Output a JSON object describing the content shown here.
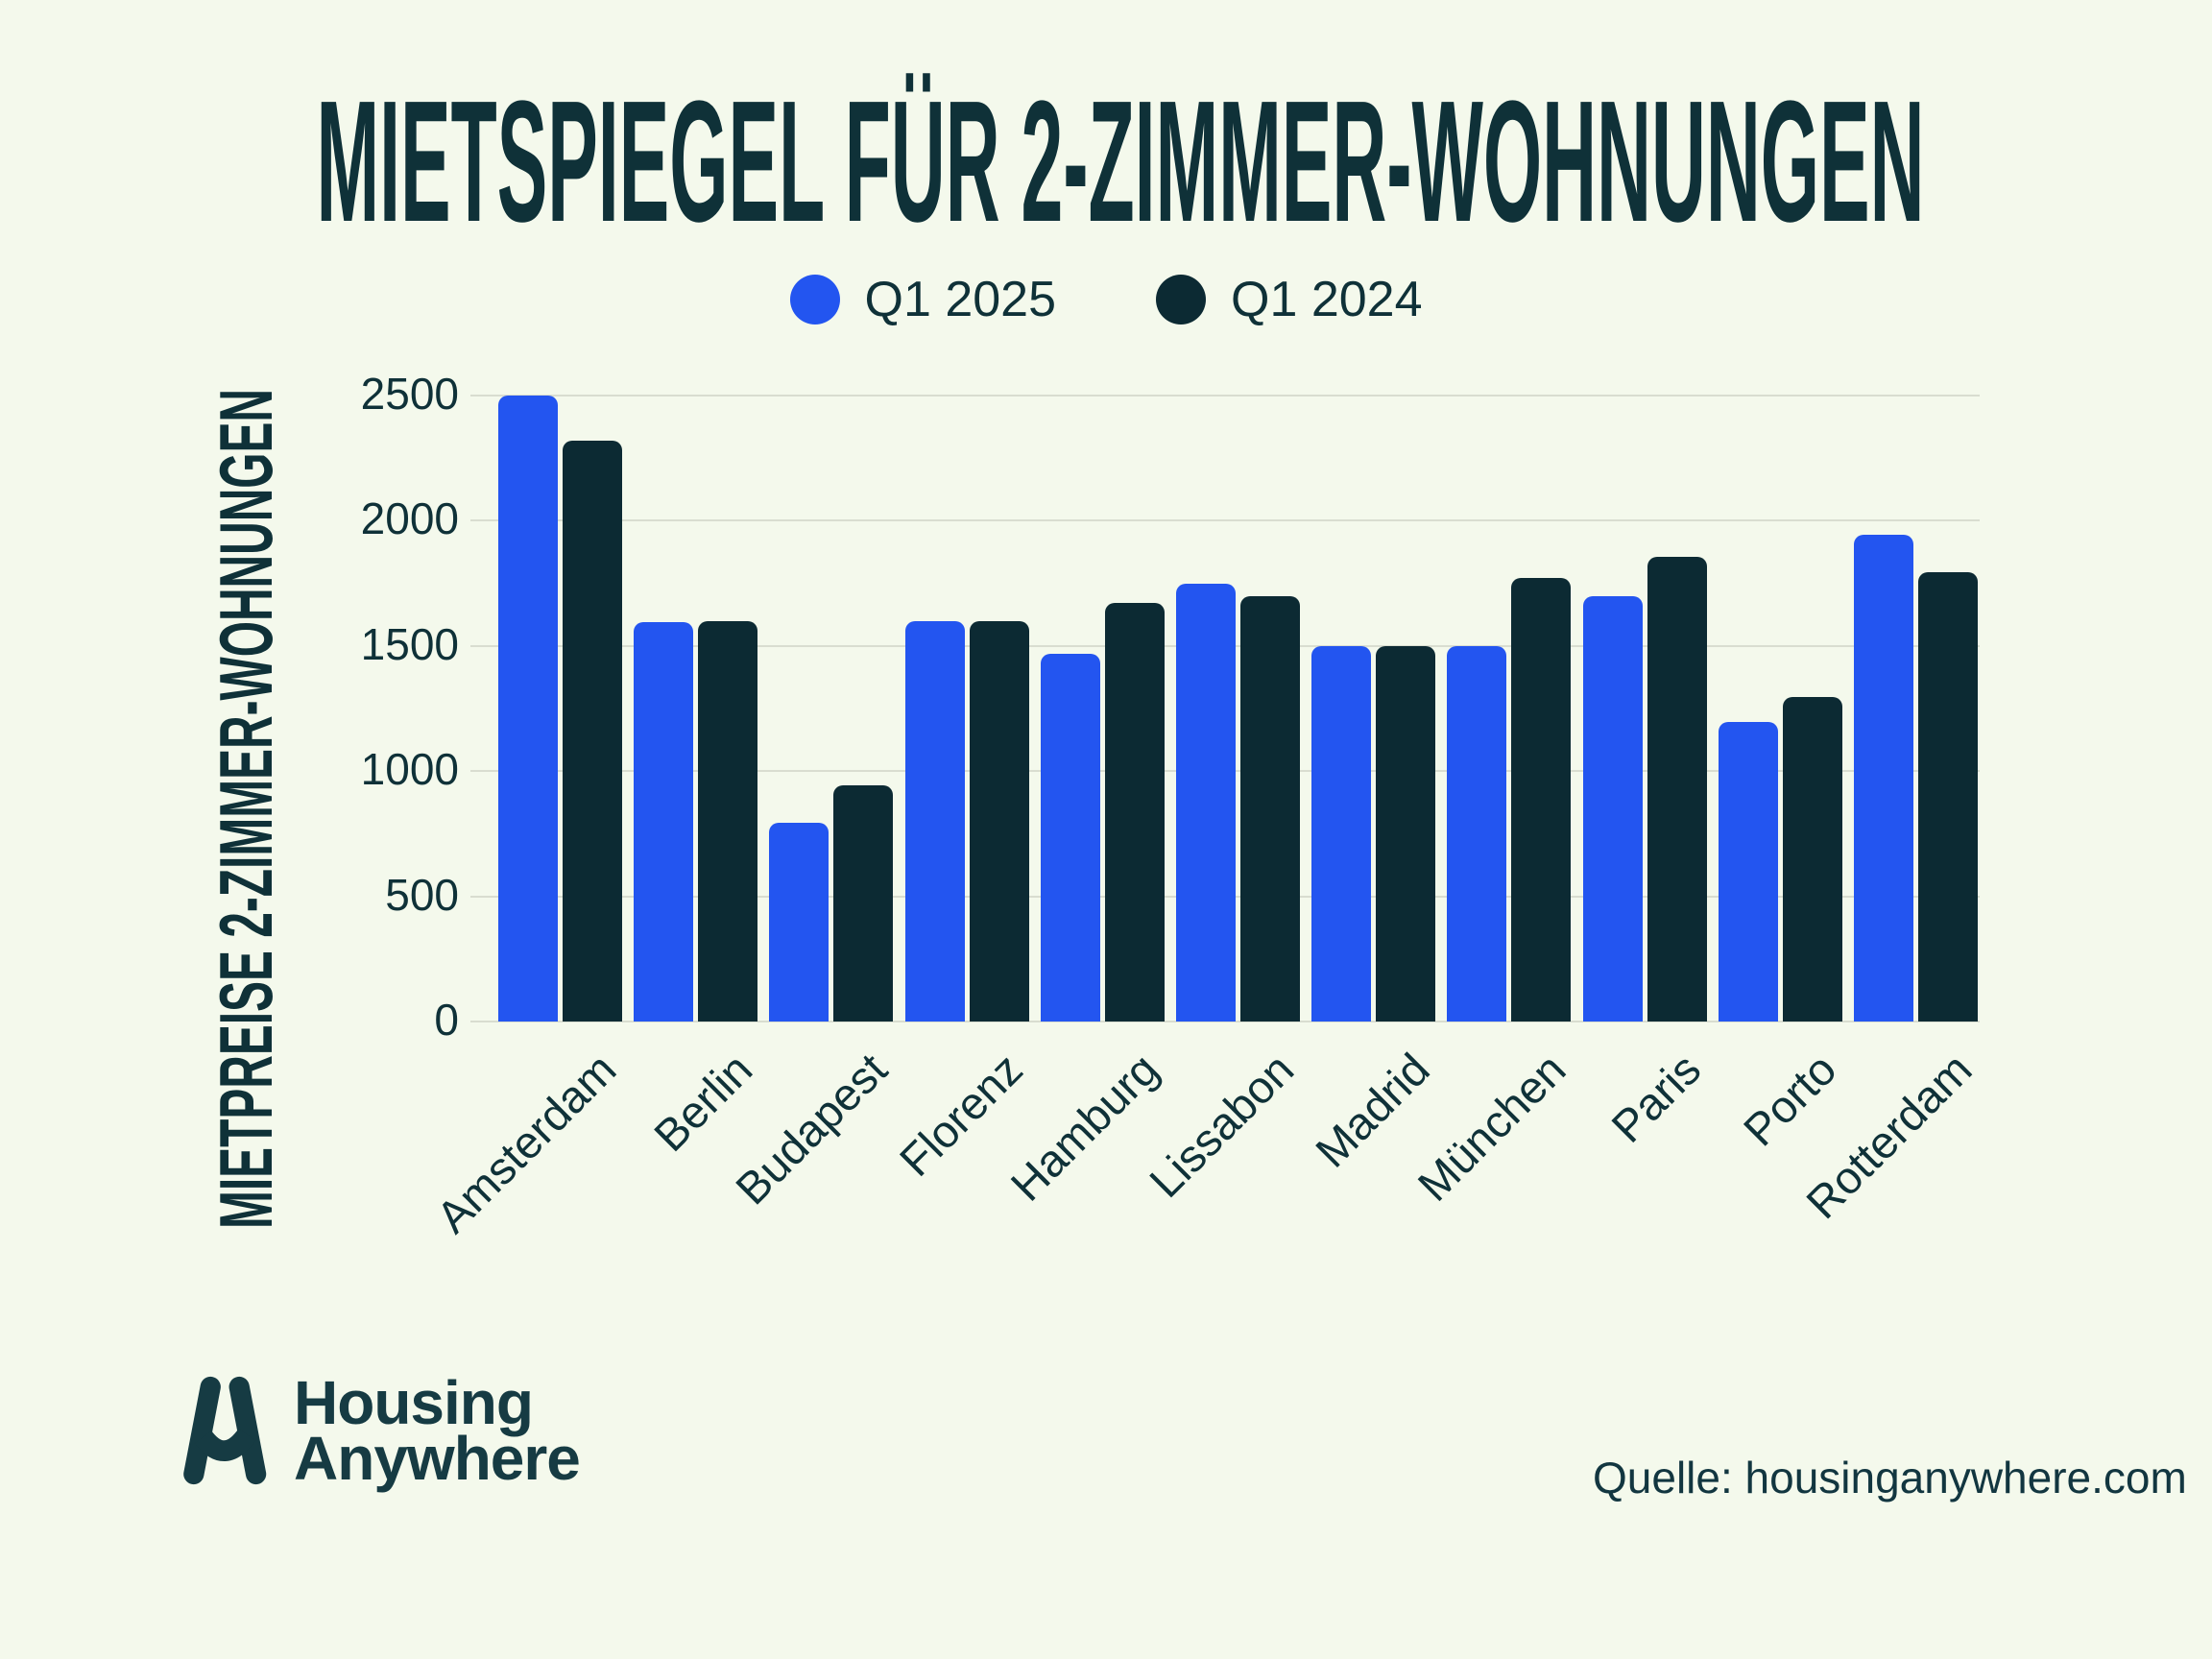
{
  "title": "MIETSPIEGEL FÜR 2-ZIMMER-WOHNUNGEN",
  "legend": {
    "items": [
      {
        "label": "Q1 2025",
        "color": "#2355F0"
      },
      {
        "label": "Q1 2024",
        "color": "#0C2A33"
      }
    ]
  },
  "colors": {
    "background": "#F4F9EC",
    "text": "#0F3138",
    "gridline": "#D9DDD0",
    "q1_2025": "#2355F0",
    "q1_2024": "#0C2A33"
  },
  "logo": {
    "line1": "Housing",
    "line2": "Anywhere"
  },
  "source": "Quelle: housinganywhere.com",
  "chart_data": {
    "type": "bar",
    "title": "MIETSPIEGEL FÜR 2-ZIMMER-WOHNUNGEN",
    "categories": [
      "Amsterdam",
      "Berlin",
      "Budapest",
      "Florenz",
      "Hamburg",
      "Lissabon",
      "Madrid",
      "München",
      "Paris",
      "Porto",
      "Rotterdam"
    ],
    "series": [
      {
        "name": "Q1 2025",
        "color": "#2355F0",
        "values": [
          2500,
          1595,
          795,
          1600,
          1470,
          1750,
          1500,
          1500,
          1700,
          1195,
          1945
        ]
      },
      {
        "name": "Q1 2024",
        "color": "#0C2A33",
        "values": [
          2320,
          1600,
          945,
          1600,
          1670,
          1700,
          1500,
          1770,
          1855,
          1295,
          1795
        ]
      }
    ],
    "xlabel": "",
    "ylabel": "MIETPREISE 2-ZIMMER-WOHNUNGEN",
    "yticks": [
      0,
      500,
      1000,
      1500,
      2000,
      2500
    ],
    "ylim": [
      0,
      2500
    ],
    "grid": true,
    "legend_position": "top"
  }
}
